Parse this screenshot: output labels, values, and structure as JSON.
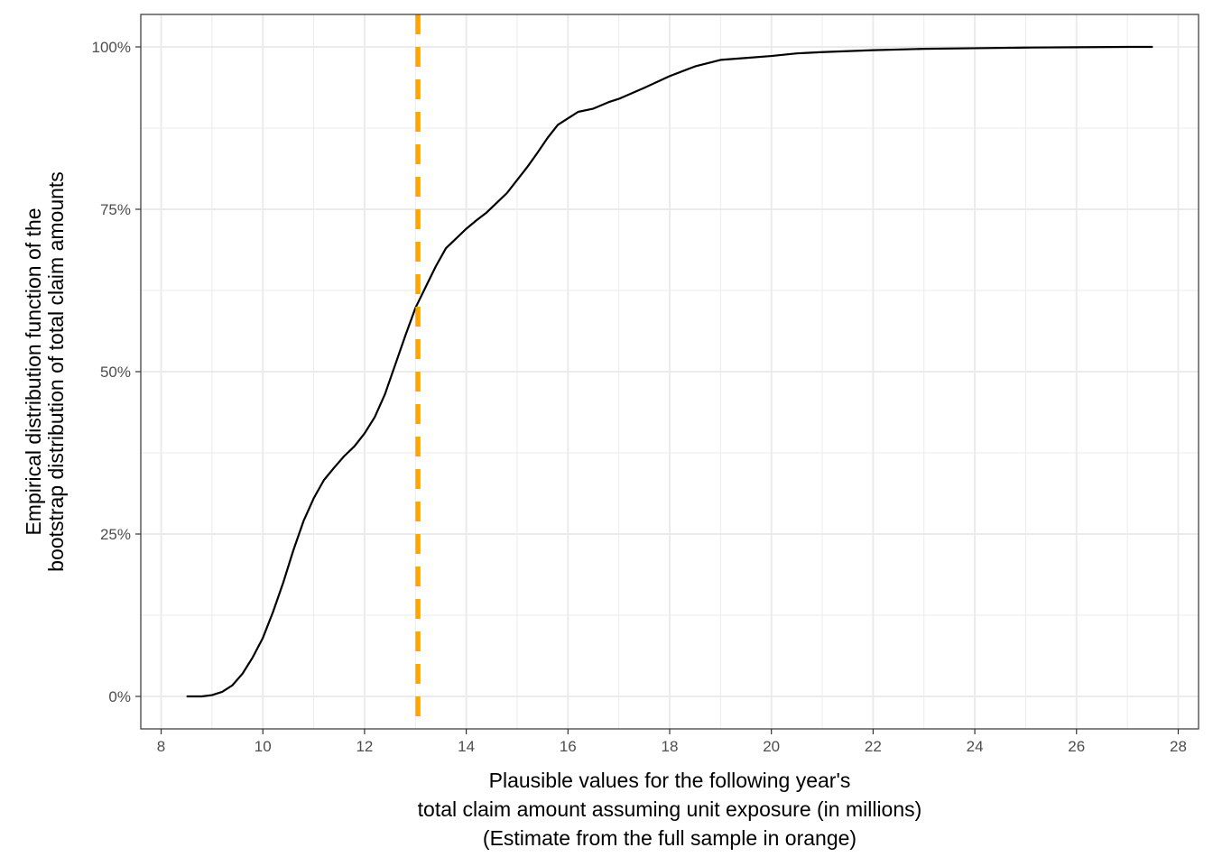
{
  "chart_data": {
    "type": "line",
    "title": "",
    "xlabel_lines": [
      "Plausible values for the following year's",
      "total claim amount assuming unit exposure (in millions)",
      "(Estimate from the full sample in orange)"
    ],
    "ylabel_lines": [
      "Empirical distribution function of the",
      "bootstrap distribution of total claim amounts"
    ],
    "xlim": [
      7.6,
      28.4
    ],
    "ylim": [
      -0.05,
      1.05
    ],
    "x_ticks": [
      8,
      10,
      12,
      14,
      16,
      18,
      20,
      22,
      24,
      26,
      28
    ],
    "x_tick_labels": [
      "8",
      "10",
      "12",
      "14",
      "16",
      "18",
      "20",
      "22",
      "24",
      "26",
      "28"
    ],
    "y_ticks": [
      0,
      0.25,
      0.5,
      0.75,
      1.0
    ],
    "y_tick_labels": [
      "0%",
      "25%",
      "50%",
      "75%",
      "100%"
    ],
    "grid": true,
    "line_color": "#000000",
    "reference_color": "#FFA500",
    "series": [
      {
        "x": [
          8.5,
          8.8,
          9.0,
          9.2,
          9.4,
          9.6,
          9.8,
          10.0,
          10.2,
          10.4,
          10.6,
          10.8,
          11.0,
          11.2,
          11.4,
          11.6,
          11.8,
          12.0,
          12.2,
          12.4,
          12.6,
          12.8,
          13.0,
          13.2,
          13.4,
          13.6,
          13.8,
          14.0,
          14.2,
          14.4,
          14.6,
          14.8,
          15.0,
          15.2,
          15.4,
          15.6,
          15.8,
          16.0,
          16.2,
          16.5,
          16.8,
          17.0,
          17.5,
          18.0,
          18.5,
          19.0,
          19.5,
          20.0,
          20.5,
          21.0,
          22.0,
          23.0,
          24.0,
          25.0,
          26.0,
          27.0,
          27.5
        ],
        "y": [
          0.0,
          0.0,
          0.002,
          0.007,
          0.017,
          0.035,
          0.06,
          0.09,
          0.13,
          0.175,
          0.225,
          0.27,
          0.305,
          0.333,
          0.352,
          0.37,
          0.385,
          0.405,
          0.43,
          0.465,
          0.51,
          0.555,
          0.598,
          0.63,
          0.662,
          0.69,
          0.705,
          0.72,
          0.733,
          0.745,
          0.76,
          0.775,
          0.795,
          0.815,
          0.837,
          0.86,
          0.88,
          0.89,
          0.9,
          0.905,
          0.915,
          0.92,
          0.937,
          0.955,
          0.97,
          0.98,
          0.983,
          0.986,
          0.99,
          0.992,
          0.995,
          0.997,
          0.998,
          0.999,
          0.9995,
          1.0,
          1.0
        ]
      }
    ],
    "reference_line": {
      "x": 13.05
    }
  }
}
